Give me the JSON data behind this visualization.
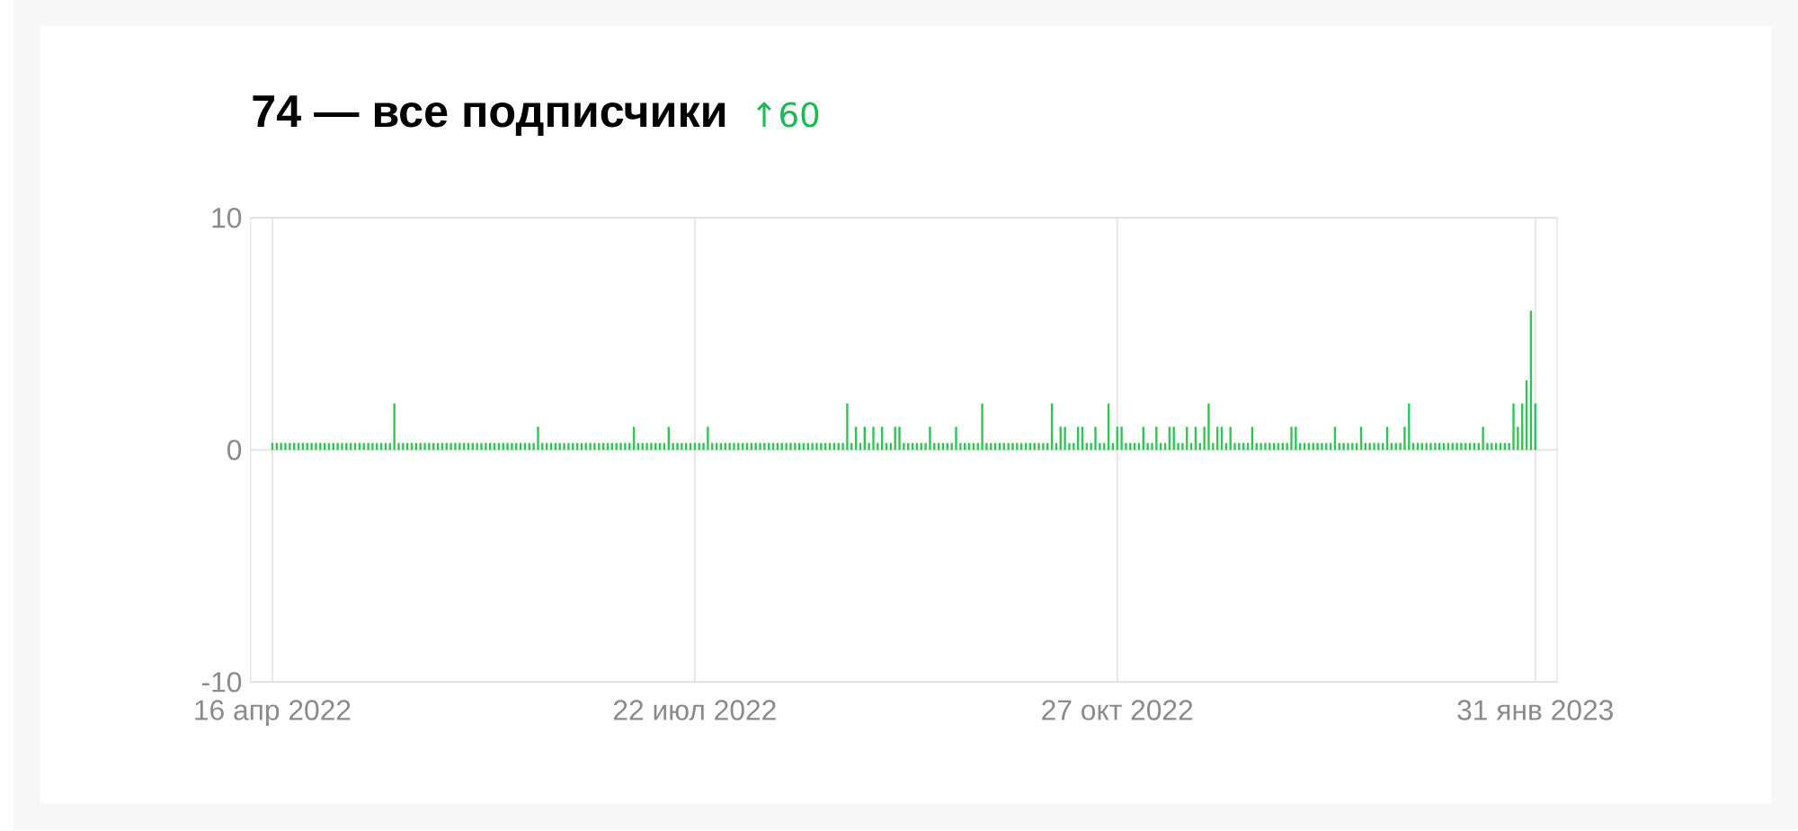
{
  "chart_data": {
    "type": "bar",
    "title": "74 — все подписчики",
    "subtitle": "↑60",
    "x": [
      "2022-04-16",
      "2022-04-17",
      "2022-04-18",
      "2022-04-19",
      "2022-04-20",
      "2022-04-21",
      "2022-04-22",
      "2022-04-23",
      "2022-04-24",
      "2022-04-25",
      "2022-04-26",
      "2022-04-27",
      "2022-04-28",
      "2022-04-29",
      "2022-04-30",
      "2022-05-01",
      "2022-05-02",
      "2022-05-03",
      "2022-05-04",
      "2022-05-05",
      "2022-05-06",
      "2022-05-07",
      "2022-05-08",
      "2022-05-09",
      "2022-05-10",
      "2022-05-11",
      "2022-05-12",
      "2022-05-13",
      "2022-05-14",
      "2022-05-15",
      "2022-05-16",
      "2022-05-17",
      "2022-05-18",
      "2022-05-19",
      "2022-05-20",
      "2022-05-21",
      "2022-05-22",
      "2022-05-23",
      "2022-05-24",
      "2022-05-25",
      "2022-05-26",
      "2022-05-27",
      "2022-05-28",
      "2022-05-29",
      "2022-05-30",
      "2022-05-31",
      "2022-06-01",
      "2022-06-02",
      "2022-06-03",
      "2022-06-04",
      "2022-06-05",
      "2022-06-06",
      "2022-06-07",
      "2022-06-08",
      "2022-06-09",
      "2022-06-10",
      "2022-06-11",
      "2022-06-12",
      "2022-06-13",
      "2022-06-14",
      "2022-06-15",
      "2022-06-16",
      "2022-06-17",
      "2022-06-18",
      "2022-06-19",
      "2022-06-20",
      "2022-06-21",
      "2022-06-22",
      "2022-06-23",
      "2022-06-24",
      "2022-06-25",
      "2022-06-26",
      "2022-06-27",
      "2022-06-28",
      "2022-06-29",
      "2022-06-30",
      "2022-07-01",
      "2022-07-02",
      "2022-07-03",
      "2022-07-04",
      "2022-07-05",
      "2022-07-06",
      "2022-07-07",
      "2022-07-08",
      "2022-07-09",
      "2022-07-10",
      "2022-07-11",
      "2022-07-12",
      "2022-07-13",
      "2022-07-14",
      "2022-07-15",
      "2022-07-16",
      "2022-07-17",
      "2022-07-18",
      "2022-07-19",
      "2022-07-20",
      "2022-07-21",
      "2022-07-22",
      "2022-07-23",
      "2022-07-24",
      "2022-07-25",
      "2022-07-26",
      "2022-07-27",
      "2022-07-28",
      "2022-07-29",
      "2022-07-30",
      "2022-07-31",
      "2022-08-01",
      "2022-08-02",
      "2022-08-03",
      "2022-08-04",
      "2022-08-05",
      "2022-08-06",
      "2022-08-07",
      "2022-08-08",
      "2022-08-09",
      "2022-08-10",
      "2022-08-11",
      "2022-08-12",
      "2022-08-13",
      "2022-08-14",
      "2022-08-15",
      "2022-08-16",
      "2022-08-17",
      "2022-08-18",
      "2022-08-19",
      "2022-08-20",
      "2022-08-21",
      "2022-08-22",
      "2022-08-23",
      "2022-08-24",
      "2022-08-25",
      "2022-08-26",
      "2022-08-27",
      "2022-08-28",
      "2022-08-29",
      "2022-08-30",
      "2022-08-31",
      "2022-09-01",
      "2022-09-02",
      "2022-09-03",
      "2022-09-04",
      "2022-09-05",
      "2022-09-06",
      "2022-09-07",
      "2022-09-08",
      "2022-09-09",
      "2022-09-10",
      "2022-09-11",
      "2022-09-12",
      "2022-09-13",
      "2022-09-14",
      "2022-09-15",
      "2022-09-16",
      "2022-09-17",
      "2022-09-18",
      "2022-09-19",
      "2022-09-20",
      "2022-09-21",
      "2022-09-22",
      "2022-09-23",
      "2022-09-24",
      "2022-09-25",
      "2022-09-26",
      "2022-09-27",
      "2022-09-28",
      "2022-09-29",
      "2022-09-30",
      "2022-10-01",
      "2022-10-02",
      "2022-10-03",
      "2022-10-04",
      "2022-10-05",
      "2022-10-06",
      "2022-10-07",
      "2022-10-08",
      "2022-10-09",
      "2022-10-10",
      "2022-10-11",
      "2022-10-12",
      "2022-10-13",
      "2022-10-14",
      "2022-10-15",
      "2022-10-16",
      "2022-10-17",
      "2022-10-18",
      "2022-10-19",
      "2022-10-20",
      "2022-10-21",
      "2022-10-22",
      "2022-10-23",
      "2022-10-24",
      "2022-10-25",
      "2022-10-26",
      "2022-10-27",
      "2022-10-28",
      "2022-10-29",
      "2022-10-30",
      "2022-10-31",
      "2022-11-01",
      "2022-11-02",
      "2022-11-03",
      "2022-11-04",
      "2022-11-05",
      "2022-11-06",
      "2022-11-07",
      "2022-11-08",
      "2022-11-09",
      "2022-11-10",
      "2022-11-11",
      "2022-11-12",
      "2022-11-13",
      "2022-11-14",
      "2022-11-15",
      "2022-11-16",
      "2022-11-17",
      "2022-11-18",
      "2022-11-19",
      "2022-11-20",
      "2022-11-21",
      "2022-11-22",
      "2022-11-23",
      "2022-11-24",
      "2022-11-25",
      "2022-11-26",
      "2022-11-27",
      "2022-11-28",
      "2022-11-29",
      "2022-11-30",
      "2022-12-01",
      "2022-12-02",
      "2022-12-03",
      "2022-12-04",
      "2022-12-05",
      "2022-12-06",
      "2022-12-07",
      "2022-12-08",
      "2022-12-09",
      "2022-12-10",
      "2022-12-11",
      "2022-12-12",
      "2022-12-13",
      "2022-12-14",
      "2022-12-15",
      "2022-12-16",
      "2022-12-17",
      "2022-12-18",
      "2022-12-19",
      "2022-12-20",
      "2022-12-21",
      "2022-12-22",
      "2022-12-23",
      "2022-12-24",
      "2022-12-25",
      "2022-12-26",
      "2022-12-27",
      "2022-12-28",
      "2022-12-29",
      "2022-12-30",
      "2022-12-31",
      "2023-01-01",
      "2023-01-02",
      "2023-01-03",
      "2023-01-04",
      "2023-01-05",
      "2023-01-06",
      "2023-01-07",
      "2023-01-08",
      "2023-01-09",
      "2023-01-10",
      "2023-01-11",
      "2023-01-12",
      "2023-01-13",
      "2023-01-14",
      "2023-01-15",
      "2023-01-16",
      "2023-01-17",
      "2023-01-18",
      "2023-01-19",
      "2023-01-20",
      "2023-01-21",
      "2023-01-22",
      "2023-01-23",
      "2023-01-24",
      "2023-01-25",
      "2023-01-26",
      "2023-01-27",
      "2023-01-28",
      "2023-01-29",
      "2023-01-30",
      "2023-01-31"
    ],
    "values": [
      0.3,
      0.3,
      0.3,
      0.3,
      0.3,
      0.3,
      0.3,
      0.3,
      0.3,
      0.3,
      0.3,
      0.3,
      0.3,
      0.3,
      0.3,
      0.3,
      0.3,
      0.3,
      0.3,
      0.3,
      0.3,
      0.3,
      0.3,
      0.3,
      0.3,
      0.3,
      0.3,
      0.3,
      2,
      0.3,
      0.3,
      0.3,
      0.3,
      0.3,
      0.3,
      0.3,
      0.3,
      0.3,
      0.3,
      0.3,
      0.3,
      0.3,
      0.3,
      0.3,
      0.3,
      0.3,
      0.3,
      0.3,
      0.3,
      0.3,
      0.3,
      0.3,
      0.3,
      0.3,
      0.3,
      0.3,
      0.3,
      0.3,
      0.3,
      0.3,
      0.3,
      1,
      0.3,
      0.3,
      0.3,
      0.3,
      0.3,
      0.3,
      0.3,
      0.3,
      0.3,
      0.3,
      0.3,
      0.3,
      0.3,
      0.3,
      0.3,
      0.3,
      0.3,
      0.3,
      0.3,
      0.3,
      0.3,
      1,
      0.3,
      0.3,
      0.3,
      0.3,
      0.3,
      0.3,
      0.3,
      1,
      0.3,
      0.3,
      0.3,
      0.3,
      0.3,
      0.3,
      0.3,
      0.3,
      1,
      0.3,
      0.3,
      0.3,
      0.3,
      0.3,
      0.3,
      0.3,
      0.3,
      0.3,
      0.3,
      0.3,
      0.3,
      0.3,
      0.3,
      0.3,
      0.3,
      0.3,
      0.3,
      0.3,
      0.3,
      0.3,
      0.3,
      0.3,
      0.3,
      0.3,
      0.3,
      0.3,
      0.3,
      0.3,
      0.3,
      0.3,
      2,
      0.3,
      1,
      0.3,
      1,
      0.3,
      1,
      0.3,
      1,
      0.3,
      0.3,
      1,
      1,
      0.3,
      0.3,
      0.3,
      0.3,
      0.3,
      0.3,
      1,
      0.3,
      0.3,
      0.3,
      0.3,
      0.3,
      1,
      0.3,
      0.3,
      0.3,
      0.3,
      0.3,
      2,
      0.3,
      0.3,
      0.3,
      0.3,
      0.3,
      0.3,
      0.3,
      0.3,
      0.3,
      0.3,
      0.3,
      0.3,
      0.3,
      0.3,
      0.3,
      2,
      0.3,
      1,
      1,
      0.3,
      0.3,
      1,
      1,
      0.3,
      0.3,
      1,
      0.3,
      0.3,
      2,
      0.3,
      1,
      1,
      0.3,
      0.3,
      0.3,
      0.3,
      1,
      0.3,
      0.3,
      1,
      0.3,
      0.3,
      1,
      1,
      0.3,
      0.3,
      1,
      0.3,
      1,
      0.3,
      1,
      2,
      0.3,
      1,
      1,
      0.3,
      1,
      0.3,
      0.3,
      0.3,
      0.3,
      1,
      0.3,
      0.3,
      0.3,
      0.3,
      0.3,
      0.3,
      0.3,
      0.3,
      1,
      1,
      0.3,
      0.3,
      0.3,
      0.3,
      0.3,
      0.3,
      0.3,
      0.3,
      1,
      0.3,
      0.3,
      0.3,
      0.3,
      0.3,
      1,
      0.3,
      0.3,
      0.3,
      0.3,
      0.3,
      1,
      0.3,
      0.3,
      0.3,
      1,
      2,
      0.3,
      0.3,
      0.3,
      0.3,
      0.3,
      0.3,
      0.3,
      0.3,
      0.3,
      0.3,
      0.3,
      0.3,
      0.3,
      0.3,
      0.3,
      0.3,
      1,
      0.3,
      0.3,
      0.3,
      0.3,
      0.3,
      0.3,
      2,
      1,
      2,
      3,
      6,
      2
    ],
    "color": "#2dc653",
    "xlim": [
      "2022-04-11",
      "2023-02-05"
    ],
    "xticks": [
      {
        "value": "2022-04-16",
        "label": "16 апр 2022"
      },
      {
        "value": "2022-07-22",
        "label": "22 июл 2022"
      },
      {
        "value": "2022-10-27",
        "label": "27 окт 2022"
      },
      {
        "value": "2023-01-31",
        "label": "31 янв 2023"
      }
    ],
    "ylim": [
      -10,
      10
    ],
    "yticks": [
      -10,
      0,
      10
    ],
    "grid": true
  }
}
